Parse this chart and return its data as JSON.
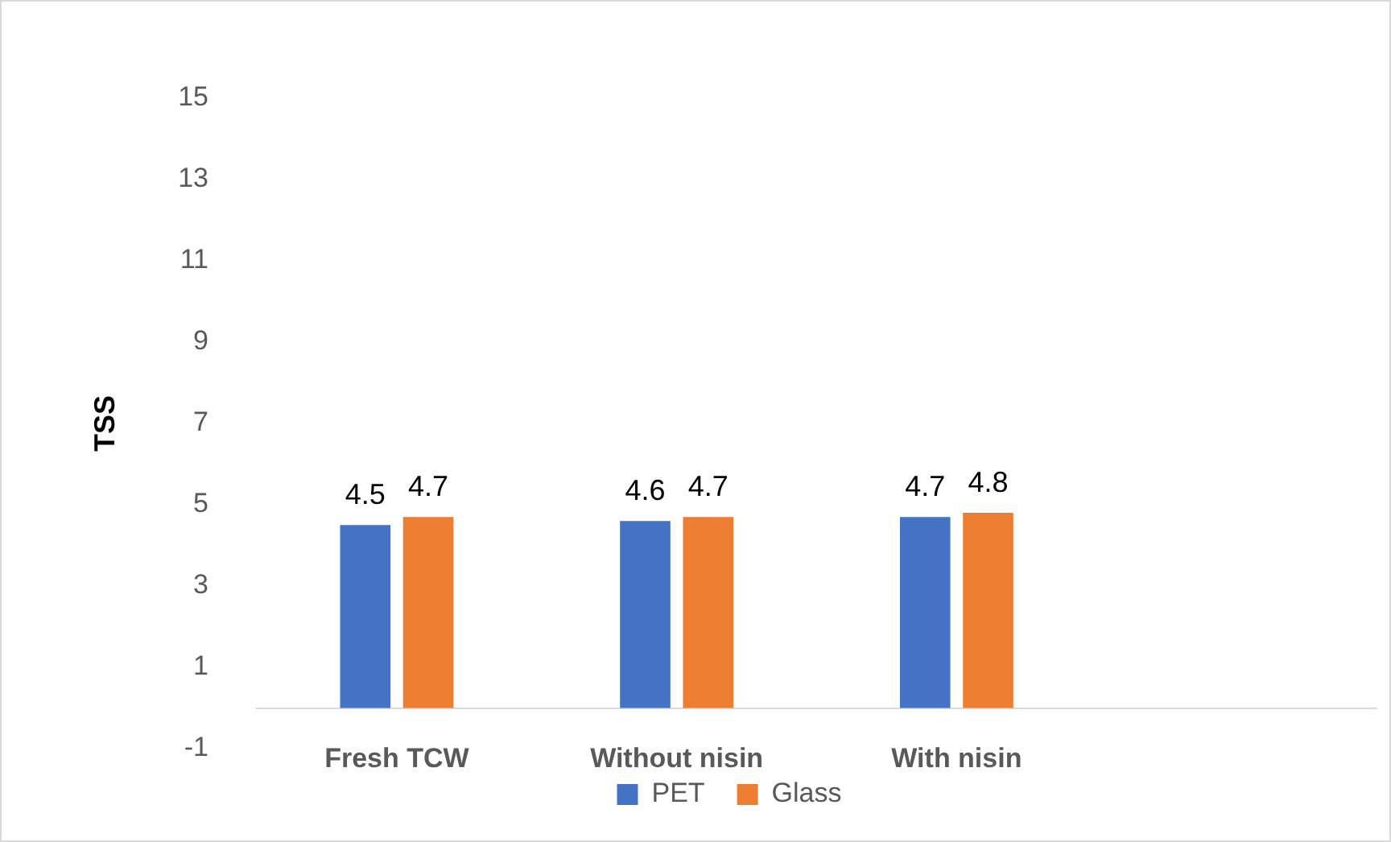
{
  "chart_data": {
    "type": "bar",
    "ylabel": "TSS",
    "categories": [
      "Fresh TCW",
      "Without nisin",
      "With nisin",
      null
    ],
    "series": [
      {
        "name": "PET",
        "color": "#4472c4",
        "values": [
          4.5,
          4.6,
          4.7,
          null
        ]
      },
      {
        "name": "Glass",
        "color": "#ed7d31",
        "values": [
          4.7,
          4.7,
          4.8,
          null
        ]
      }
    ],
    "ylim": [
      -1,
      15
    ],
    "yticks": [
      -1,
      1,
      3,
      5,
      7,
      9,
      11,
      13,
      15
    ],
    "grid": false,
    "legend": "bottom",
    "data_labels": true
  }
}
